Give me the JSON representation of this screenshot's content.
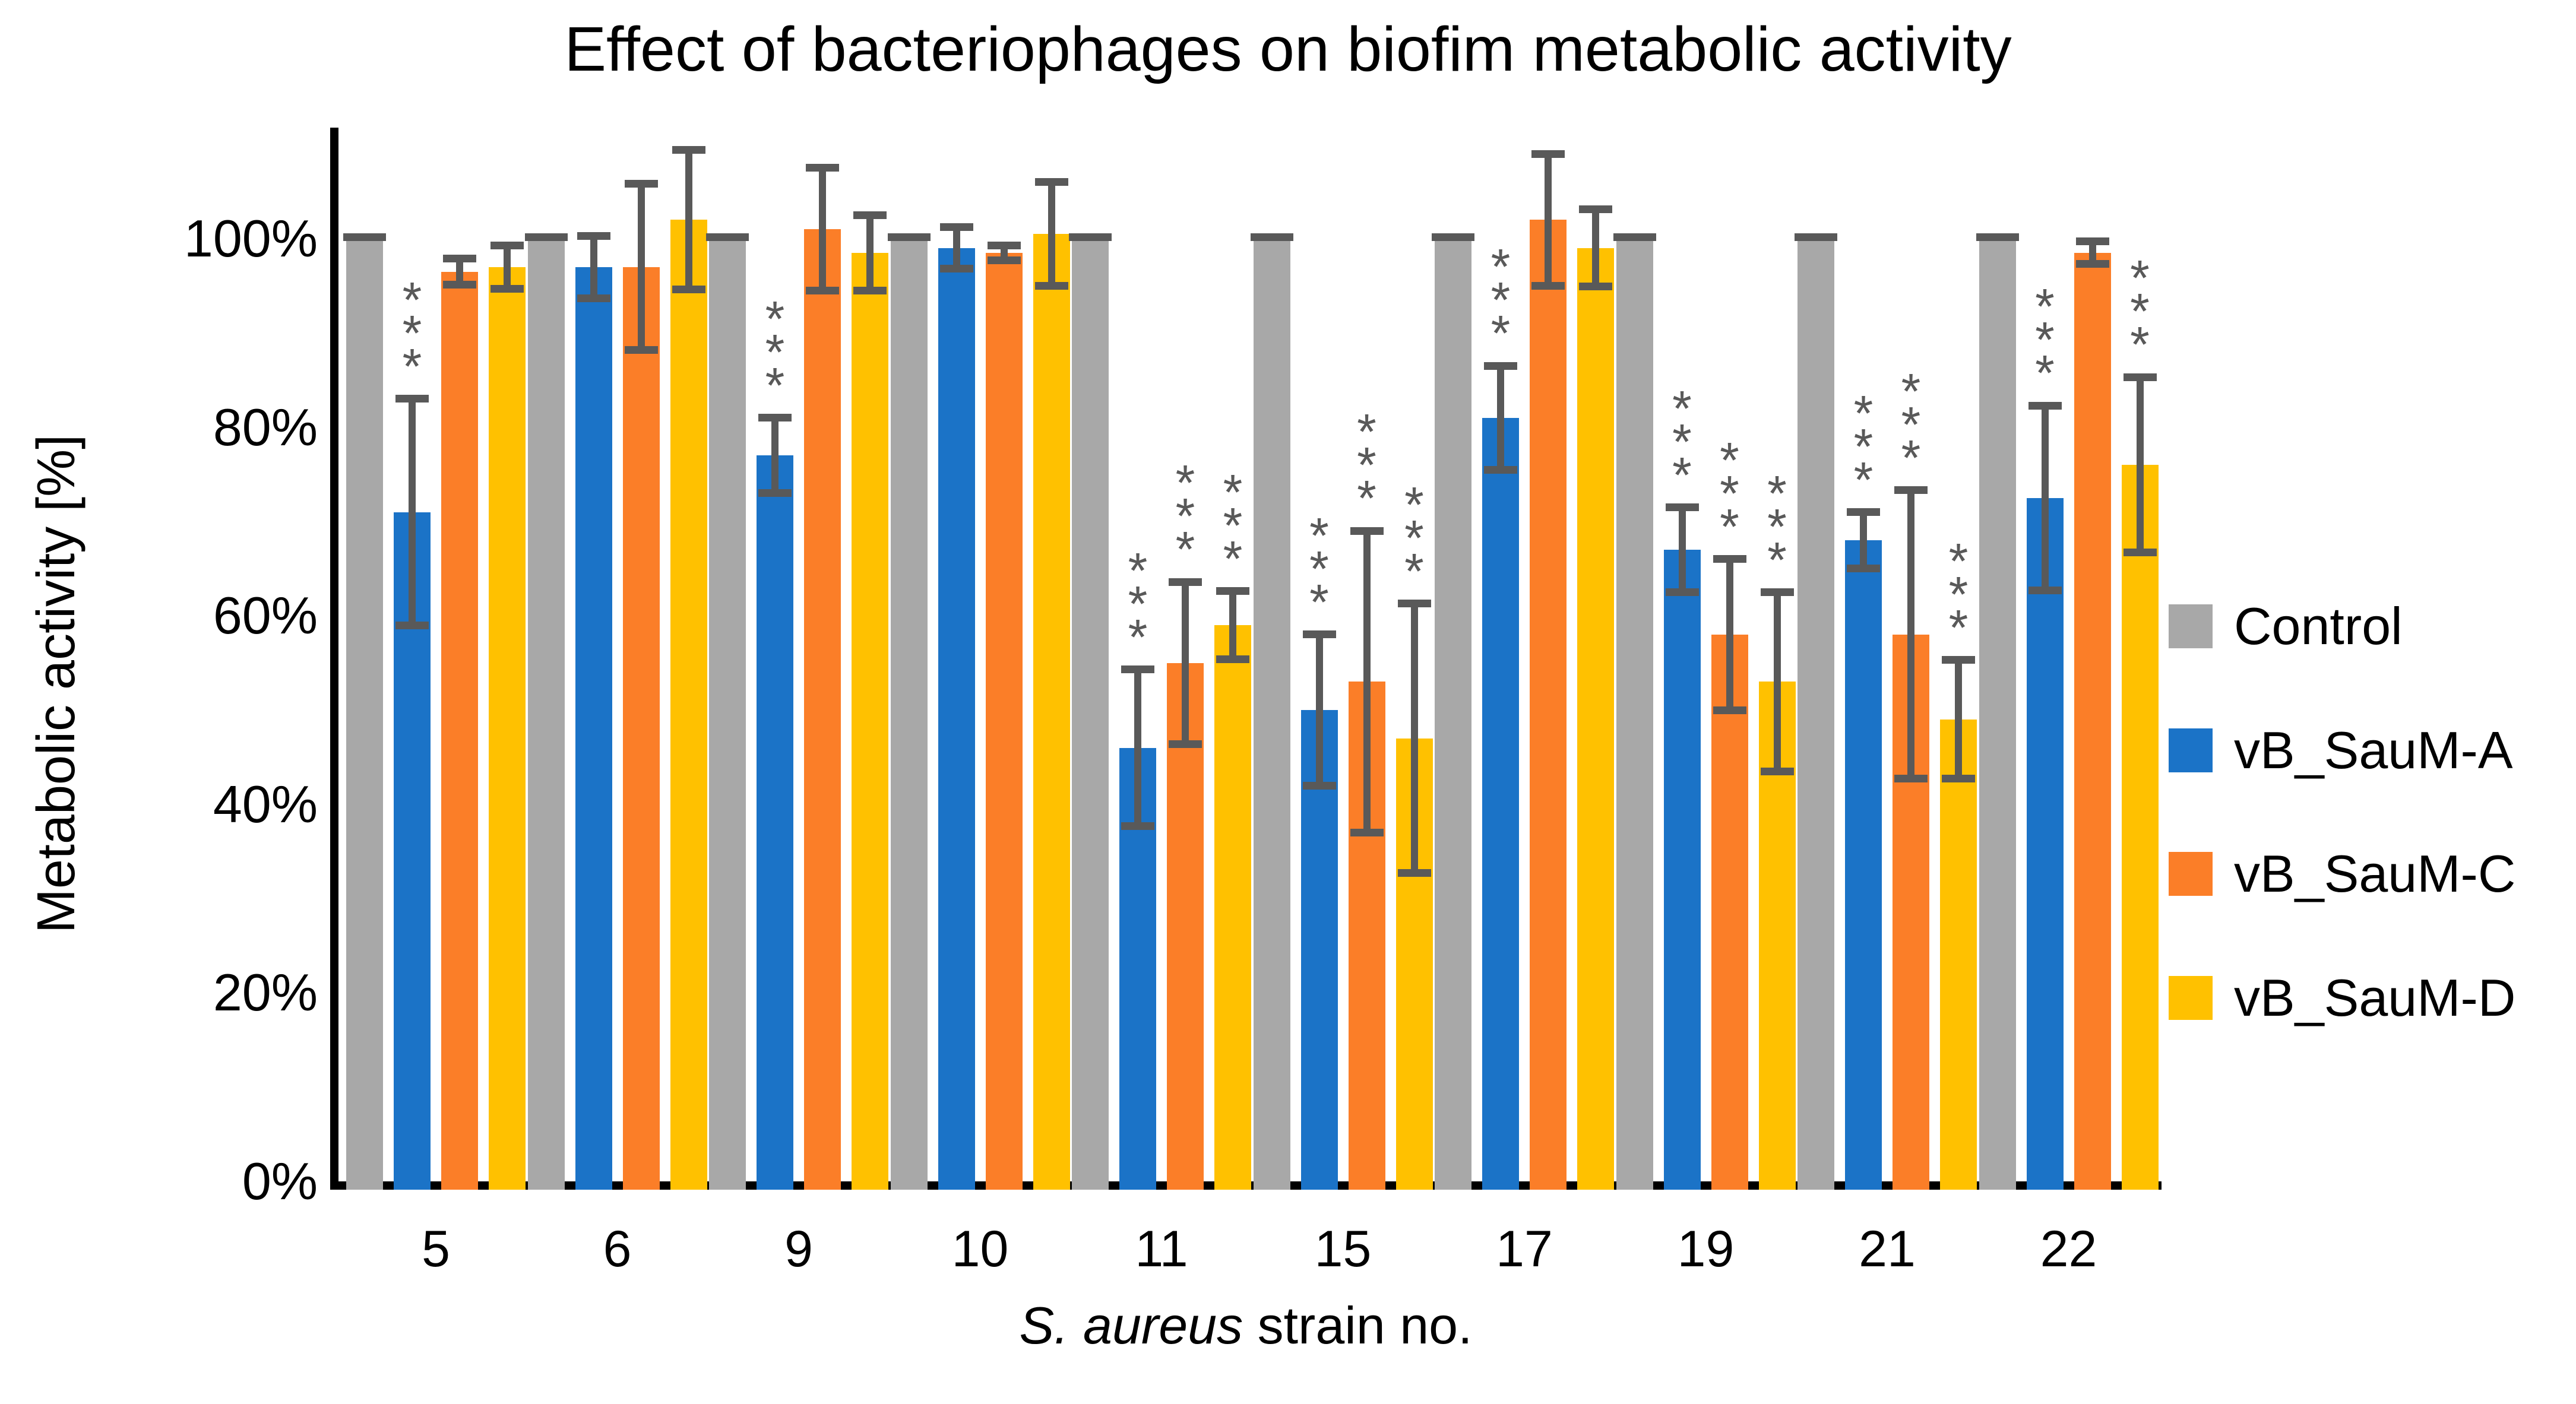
{
  "title": "Effect of bacteriophages on biofim metabolic activity",
  "y_axis": {
    "label": "Metabolic activity [%]",
    "ticks": [
      {
        "label": "100%",
        "value": 100
      },
      {
        "label": "80%",
        "value": 80
      },
      {
        "label": "60%",
        "value": 60
      },
      {
        "label": "40%",
        "value": 40
      },
      {
        "label": "20%",
        "value": 20
      },
      {
        "label": "0%",
        "value": 0
      }
    ]
  },
  "x_axis": {
    "label_italic": "S. aureus",
    "label_rest": " strain no."
  },
  "legend": {
    "position": "right",
    "entries": [
      "Control",
      "vB_SauM-A",
      "vB_SauM-C",
      "vB_SauM-D"
    ]
  },
  "colors": {
    "control": "#A8A8A8",
    "phage_a": "#1B73C7",
    "phage_c": "#FB7E28",
    "phage_d": "#FFC100",
    "error_bar": "#595959",
    "axis": "#000000"
  },
  "sig_label": "***",
  "chart_data": {
    "type": "bar",
    "title": "Effect of bacteriophages on biofim metabolic activity",
    "xlabel": "S. aureus strain no.",
    "ylabel": "Metabolic activity [%]",
    "categories": [
      "5",
      "6",
      "9",
      "10",
      "11",
      "15",
      "17",
      "19",
      "21",
      "22"
    ],
    "ylim": [
      0,
      112
    ],
    "grid": false,
    "legend_position": "right",
    "series": [
      {
        "name": "Control",
        "color": "#A8A8A8",
        "values": [
          100,
          100,
          100,
          100,
          100,
          100,
          100,
          100,
          100,
          100
        ],
        "errors": [
          0,
          0,
          0,
          0,
          0,
          0,
          0,
          0,
          0,
          0
        ],
        "significant": [
          false,
          false,
          false,
          false,
          false,
          false,
          false,
          false,
          false,
          false
        ]
      },
      {
        "name": "vB_SauM-A",
        "color": "#1B73C7",
        "values": [
          71,
          97,
          77,
          99,
          46,
          50,
          81,
          67,
          68,
          72.5
        ],
        "errors": [
          12,
          3.3,
          4,
          2.2,
          8.3,
          8,
          5.5,
          4.5,
          3,
          9.8
        ],
        "significant": [
          true,
          false,
          true,
          false,
          true,
          true,
          true,
          true,
          true,
          true
        ]
      },
      {
        "name": "vB_SauM-C",
        "color": "#FB7E28",
        "values": [
          96.5,
          97,
          101,
          98.5,
          55,
          53,
          102,
          58,
          58,
          98.5
        ],
        "errors": [
          1.4,
          8.8,
          6.5,
          0.8,
          8.6,
          16,
          7,
          8,
          15.3,
          1.2
        ],
        "significant": [
          false,
          false,
          false,
          false,
          true,
          true,
          false,
          true,
          true,
          false
        ]
      },
      {
        "name": "vB_SauM-D",
        "color": "#FFC100",
        "values": [
          97,
          102,
          98.5,
          100.5,
          59,
          47,
          99,
          53,
          49,
          76
        ],
        "errors": [
          2.3,
          7.4,
          4,
          5.5,
          3.6,
          14.3,
          4.1,
          9.5,
          6.3,
          9.3
        ],
        "significant": [
          false,
          false,
          false,
          false,
          true,
          true,
          false,
          true,
          true,
          true
        ]
      }
    ]
  }
}
